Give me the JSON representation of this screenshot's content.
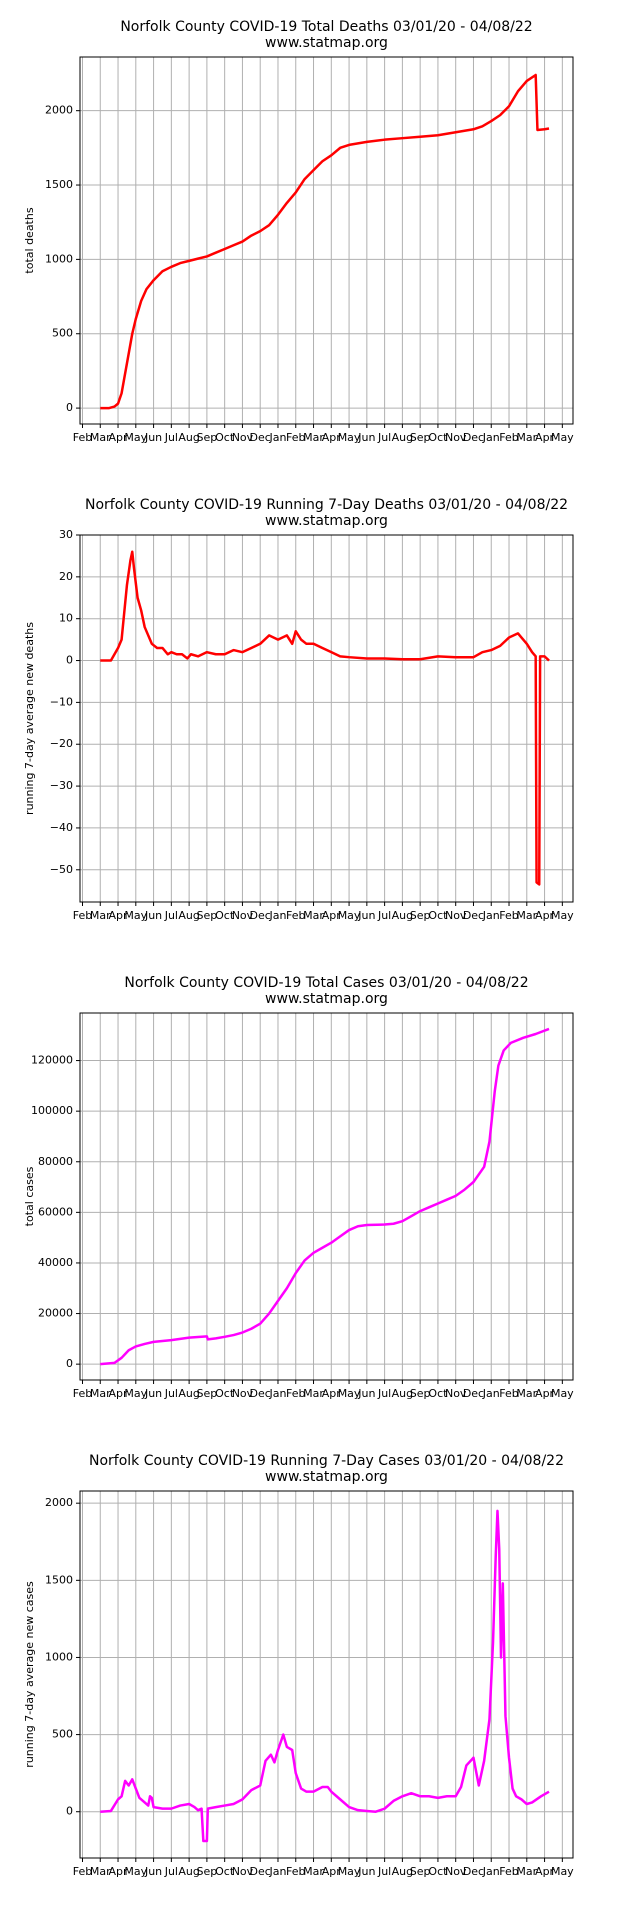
{
  "chart_data": [
    {
      "type": "line",
      "title": "Norfolk County COVID-19 Total Deaths 03/01/20 - 04/08/22",
      "subtitle": "www.statmap.org",
      "ylabel": "total deaths",
      "color": "#ff0000",
      "grid": true,
      "xlim": [
        -0.14,
        27.6
      ],
      "xticks": [
        {
          "value": 0,
          "label": "Feb"
        },
        {
          "value": 1,
          "label": "Mar"
        },
        {
          "value": 2,
          "label": "Apr"
        },
        {
          "value": 3,
          "label": "May"
        },
        {
          "value": 4,
          "label": "Jun"
        },
        {
          "value": 5,
          "label": "Jul"
        },
        {
          "value": 6,
          "label": "Aug"
        },
        {
          "value": 7,
          "label": "Sep"
        },
        {
          "value": 8,
          "label": "Oct"
        },
        {
          "value": 9,
          "label": "Nov"
        },
        {
          "value": 10,
          "label": "Dec"
        },
        {
          "value": 11,
          "label": "Jan"
        },
        {
          "value": 12,
          "label": "Feb"
        },
        {
          "value": 13,
          "label": "Mar"
        },
        {
          "value": 14,
          "label": "Apr"
        },
        {
          "value": 15,
          "label": "May"
        },
        {
          "value": 16,
          "label": "Jun"
        },
        {
          "value": 17,
          "label": "Jul"
        },
        {
          "value": 18,
          "label": "Aug"
        },
        {
          "value": 19,
          "label": "Sep"
        },
        {
          "value": 20,
          "label": "Oct"
        },
        {
          "value": 21,
          "label": "Nov"
        },
        {
          "value": 22,
          "label": "Dec"
        },
        {
          "value": 23,
          "label": "Jan"
        },
        {
          "value": 24,
          "label": "Feb"
        },
        {
          "value": 25,
          "label": "Mar"
        },
        {
          "value": 26,
          "label": "Apr"
        },
        {
          "value": 27,
          "label": "May"
        }
      ],
      "ylim": [
        -107,
        2361
      ],
      "yticks": [
        0,
        500,
        1000,
        1500,
        2000
      ],
      "x": [
        1.0,
        1.5,
        1.8,
        2.0,
        2.2,
        2.5,
        2.8,
        3.0,
        3.3,
        3.6,
        4.0,
        4.5,
        5.0,
        5.5,
        6.0,
        6.5,
        7.0,
        7.5,
        8.0,
        8.5,
        9.0,
        9.5,
        10.0,
        10.5,
        11.0,
        11.5,
        12.0,
        12.5,
        13.0,
        13.5,
        14.0,
        14.5,
        15.0,
        16.0,
        17.0,
        18.0,
        19.0,
        20.0,
        21.0,
        22.0,
        22.5,
        23.0,
        23.5,
        24.0,
        24.5,
        25.0,
        25.5,
        25.6,
        26.0,
        26.25
      ],
      "values": [
        0,
        0,
        10,
        30,
        100,
        300,
        500,
        600,
        720,
        800,
        860,
        920,
        950,
        975,
        990,
        1005,
        1020,
        1045,
        1070,
        1095,
        1120,
        1160,
        1190,
        1230,
        1300,
        1380,
        1450,
        1540,
        1600,
        1660,
        1700,
        1750,
        1770,
        1790,
        1805,
        1815,
        1825,
        1835,
        1855,
        1875,
        1895,
        1930,
        1970,
        2030,
        2130,
        2200,
        2240,
        1870,
        1875,
        1880
      ]
    },
    {
      "type": "line",
      "title": "Norfolk County COVID-19 Running 7-Day Deaths 03/01/20 - 04/08/22",
      "subtitle": "www.statmap.org",
      "ylabel": "running 7-day average new deaths",
      "color": "#ff0000",
      "grid": true,
      "xlim": [
        -0.14,
        27.6
      ],
      "xticks": [
        {
          "value": 0,
          "label": "Feb"
        },
        {
          "value": 1,
          "label": "Mar"
        },
        {
          "value": 2,
          "label": "Apr"
        },
        {
          "value": 3,
          "label": "May"
        },
        {
          "value": 4,
          "label": "Jun"
        },
        {
          "value": 5,
          "label": "Jul"
        },
        {
          "value": 6,
          "label": "Aug"
        },
        {
          "value": 7,
          "label": "Sep"
        },
        {
          "value": 8,
          "label": "Oct"
        },
        {
          "value": 9,
          "label": "Nov"
        },
        {
          "value": 10,
          "label": "Dec"
        },
        {
          "value": 11,
          "label": "Jan"
        },
        {
          "value": 12,
          "label": "Feb"
        },
        {
          "value": 13,
          "label": "Mar"
        },
        {
          "value": 14,
          "label": "Apr"
        },
        {
          "value": 15,
          "label": "May"
        },
        {
          "value": 16,
          "label": "Jun"
        },
        {
          "value": 17,
          "label": "Jul"
        },
        {
          "value": 18,
          "label": "Aug"
        },
        {
          "value": 19,
          "label": "Sep"
        },
        {
          "value": 20,
          "label": "Oct"
        },
        {
          "value": 21,
          "label": "Nov"
        },
        {
          "value": 22,
          "label": "Dec"
        },
        {
          "value": 23,
          "label": "Jan"
        },
        {
          "value": 24,
          "label": "Feb"
        },
        {
          "value": 25,
          "label": "Mar"
        },
        {
          "value": 26,
          "label": "Apr"
        },
        {
          "value": 27,
          "label": "May"
        }
      ],
      "ylim": [
        -57.7,
        30
      ],
      "yticks": [
        {
          "value": -50,
          "label": "−50"
        },
        {
          "value": -40,
          "label": "−40"
        },
        {
          "value": -30,
          "label": "−30"
        },
        {
          "value": -20,
          "label": "−20"
        },
        {
          "value": -10,
          "label": "−10"
        },
        0,
        10,
        20,
        30
      ],
      "x": [
        1.0,
        1.6,
        2.0,
        2.2,
        2.5,
        2.7,
        2.8,
        2.9,
        3.1,
        3.3,
        3.5,
        3.7,
        3.9,
        4.2,
        4.5,
        4.8,
        5.0,
        5.3,
        5.6,
        5.9,
        6.1,
        6.5,
        7.0,
        7.5,
        8.0,
        8.5,
        9.0,
        9.5,
        10.0,
        10.5,
        11.0,
        11.5,
        11.8,
        12.0,
        12.3,
        12.6,
        13.0,
        13.5,
        14.0,
        14.5,
        15.0,
        16.0,
        17.0,
        18.0,
        19.0,
        20.0,
        21.0,
        22.0,
        22.5,
        23.0,
        23.5,
        24.0,
        24.5,
        25.0,
        25.3,
        25.5,
        25.55,
        25.7,
        25.75,
        26.0,
        26.25
      ],
      "values": [
        0,
        0,
        3,
        5,
        18,
        24,
        26,
        22,
        15,
        12,
        8,
        6,
        4,
        3,
        3,
        1.5,
        2,
        1.5,
        1.5,
        0.5,
        1.5,
        1,
        2,
        1.5,
        1.5,
        2.5,
        2,
        3,
        4,
        6,
        5,
        6,
        4,
        7,
        5,
        4,
        4,
        3,
        2,
        1,
        0.8,
        0.5,
        0.5,
        0.3,
        0.3,
        1,
        0.8,
        0.8,
        2,
        2.5,
        3.5,
        5.5,
        6.5,
        4,
        2,
        1,
        -53,
        -53.5,
        1,
        1,
        0
      ]
    },
    {
      "type": "line",
      "title": "Norfolk County COVID-19 Total Cases 03/01/20 - 04/08/22",
      "subtitle": "www.statmap.org",
      "ylabel": "total cases",
      "color": "#ff00ff",
      "grid": true,
      "xlim": [
        -0.14,
        27.6
      ],
      "xticks": [
        {
          "value": 0,
          "label": "Feb"
        },
        {
          "value": 1,
          "label": "Mar"
        },
        {
          "value": 2,
          "label": "Apr"
        },
        {
          "value": 3,
          "label": "May"
        },
        {
          "value": 4,
          "label": "Jun"
        },
        {
          "value": 5,
          "label": "Jul"
        },
        {
          "value": 6,
          "label": "Aug"
        },
        {
          "value": 7,
          "label": "Sep"
        },
        {
          "value": 8,
          "label": "Oct"
        },
        {
          "value": 9,
          "label": "Nov"
        },
        {
          "value": 10,
          "label": "Dec"
        },
        {
          "value": 11,
          "label": "Jan"
        },
        {
          "value": 12,
          "label": "Feb"
        },
        {
          "value": 13,
          "label": "Mar"
        },
        {
          "value": 14,
          "label": "Apr"
        },
        {
          "value": 15,
          "label": "May"
        },
        {
          "value": 16,
          "label": "Jun"
        },
        {
          "value": 17,
          "label": "Jul"
        },
        {
          "value": 18,
          "label": "Aug"
        },
        {
          "value": 19,
          "label": "Sep"
        },
        {
          "value": 20,
          "label": "Oct"
        },
        {
          "value": 21,
          "label": "Nov"
        },
        {
          "value": 22,
          "label": "Dec"
        },
        {
          "value": 23,
          "label": "Jan"
        },
        {
          "value": 24,
          "label": "Feb"
        },
        {
          "value": 25,
          "label": "Mar"
        },
        {
          "value": 26,
          "label": "Apr"
        },
        {
          "value": 27,
          "label": "May"
        }
      ],
      "ylim": [
        -6265,
        138800
      ],
      "yticks": [
        0,
        20000,
        40000,
        60000,
        80000,
        100000,
        120000
      ],
      "x": [
        1.0,
        1.8,
        2.2,
        2.6,
        3.0,
        3.5,
        4.0,
        5.0,
        6.0,
        7.0,
        7.05,
        7.5,
        8.0,
        8.5,
        9.0,
        9.5,
        10.0,
        10.5,
        11.0,
        11.5,
        12.0,
        12.5,
        13.0,
        13.5,
        14.0,
        14.5,
        15.0,
        15.5,
        16.0,
        17.0,
        17.5,
        18.0,
        18.5,
        19.0,
        19.5,
        20.0,
        20.5,
        21.0,
        21.5,
        22.0,
        22.6,
        22.9,
        23.2,
        23.4,
        23.7,
        24.1,
        24.8,
        25.5,
        26.25
      ],
      "values": [
        0,
        500,
        2500,
        5500,
        7000,
        8000,
        8800,
        9500,
        10500,
        11000,
        9800,
        10200,
        10800,
        11500,
        12500,
        14000,
        16000,
        20000,
        25000,
        30000,
        36000,
        41000,
        44000,
        46000,
        48000,
        50500,
        53000,
        54500,
        55000,
        55200,
        55500,
        56500,
        58500,
        60500,
        62000,
        63500,
        65000,
        66500,
        69000,
        72000,
        78000,
        88000,
        108000,
        118000,
        124000,
        127000,
        129000,
        130500,
        132500
      ]
    },
    {
      "type": "line",
      "title": "Norfolk County COVID-19 Running 7-Day Cases 03/01/20 - 04/08/22",
      "subtitle": "www.statmap.org",
      "ylabel": "running 7-day average new cases",
      "color": "#ff00ff",
      "grid": true,
      "xlim": [
        -0.14,
        27.6
      ],
      "xticks": [
        {
          "value": 0,
          "label": "Feb"
        },
        {
          "value": 1,
          "label": "Mar"
        },
        {
          "value": 2,
          "label": "Apr"
        },
        {
          "value": 3,
          "label": "May"
        },
        {
          "value": 4,
          "label": "Jun"
        },
        {
          "value": 5,
          "label": "Jul"
        },
        {
          "value": 6,
          "label": "Aug"
        },
        {
          "value": 7,
          "label": "Sep"
        },
        {
          "value": 8,
          "label": "Oct"
        },
        {
          "value": 9,
          "label": "Nov"
        },
        {
          "value": 10,
          "label": "Dec"
        },
        {
          "value": 11,
          "label": "Jan"
        },
        {
          "value": 12,
          "label": "Feb"
        },
        {
          "value": 13,
          "label": "Mar"
        },
        {
          "value": 14,
          "label": "Apr"
        },
        {
          "value": 15,
          "label": "May"
        },
        {
          "value": 16,
          "label": "Jun"
        },
        {
          "value": 17,
          "label": "Jul"
        },
        {
          "value": 18,
          "label": "Aug"
        },
        {
          "value": 19,
          "label": "Sep"
        },
        {
          "value": 20,
          "label": "Oct"
        },
        {
          "value": 21,
          "label": "Nov"
        },
        {
          "value": 22,
          "label": "Dec"
        },
        {
          "value": 23,
          "label": "Jan"
        },
        {
          "value": 24,
          "label": "Feb"
        },
        {
          "value": 25,
          "label": "Mar"
        },
        {
          "value": 26,
          "label": "Apr"
        },
        {
          "value": 27,
          "label": "May"
        }
      ],
      "ylim": [
        -300,
        2079
      ],
      "yticks": [
        0,
        500,
        1000,
        1500,
        2000
      ],
      "x": [
        1.0,
        1.6,
        2.0,
        2.2,
        2.4,
        2.6,
        2.8,
        3.0,
        3.2,
        3.5,
        3.7,
        3.8,
        3.9,
        4.0,
        4.5,
        5.0,
        5.5,
        6.0,
        6.3,
        6.5,
        6.7,
        6.8,
        7.0,
        7.05,
        7.5,
        8.0,
        8.5,
        9.0,
        9.5,
        10.0,
        10.3,
        10.6,
        10.8,
        11.0,
        11.3,
        11.5,
        11.8,
        12.0,
        12.3,
        12.6,
        13.0,
        13.5,
        13.8,
        14.0,
        14.5,
        15.0,
        15.5,
        16.0,
        16.5,
        17.0,
        17.5,
        18.0,
        18.5,
        19.0,
        19.5,
        20.0,
        20.5,
        21.0,
        21.3,
        21.6,
        22.0,
        22.3,
        22.6,
        22.9,
        23.1,
        23.25,
        23.35,
        23.45,
        23.55,
        23.65,
        23.8,
        24.0,
        24.2,
        24.4,
        24.7,
        25.0,
        25.3,
        25.8,
        26.25
      ],
      "values": [
        0,
        5,
        80,
        100,
        200,
        170,
        210,
        150,
        90,
        60,
        40,
        100,
        90,
        30,
        20,
        20,
        40,
        50,
        30,
        10,
        20,
        -190,
        -190,
        20,
        30,
        40,
        50,
        80,
        140,
        170,
        330,
        370,
        320,
        400,
        500,
        420,
        400,
        250,
        150,
        130,
        130,
        160,
        160,
        130,
        80,
        30,
        10,
        5,
        0,
        20,
        70,
        100,
        120,
        100,
        100,
        90,
        100,
        100,
        160,
        300,
        350,
        170,
        330,
        600,
        1100,
        1650,
        1950,
        1700,
        1000,
        1480,
        620,
        350,
        150,
        100,
        80,
        50,
        60,
        100,
        130
      ]
    }
  ]
}
